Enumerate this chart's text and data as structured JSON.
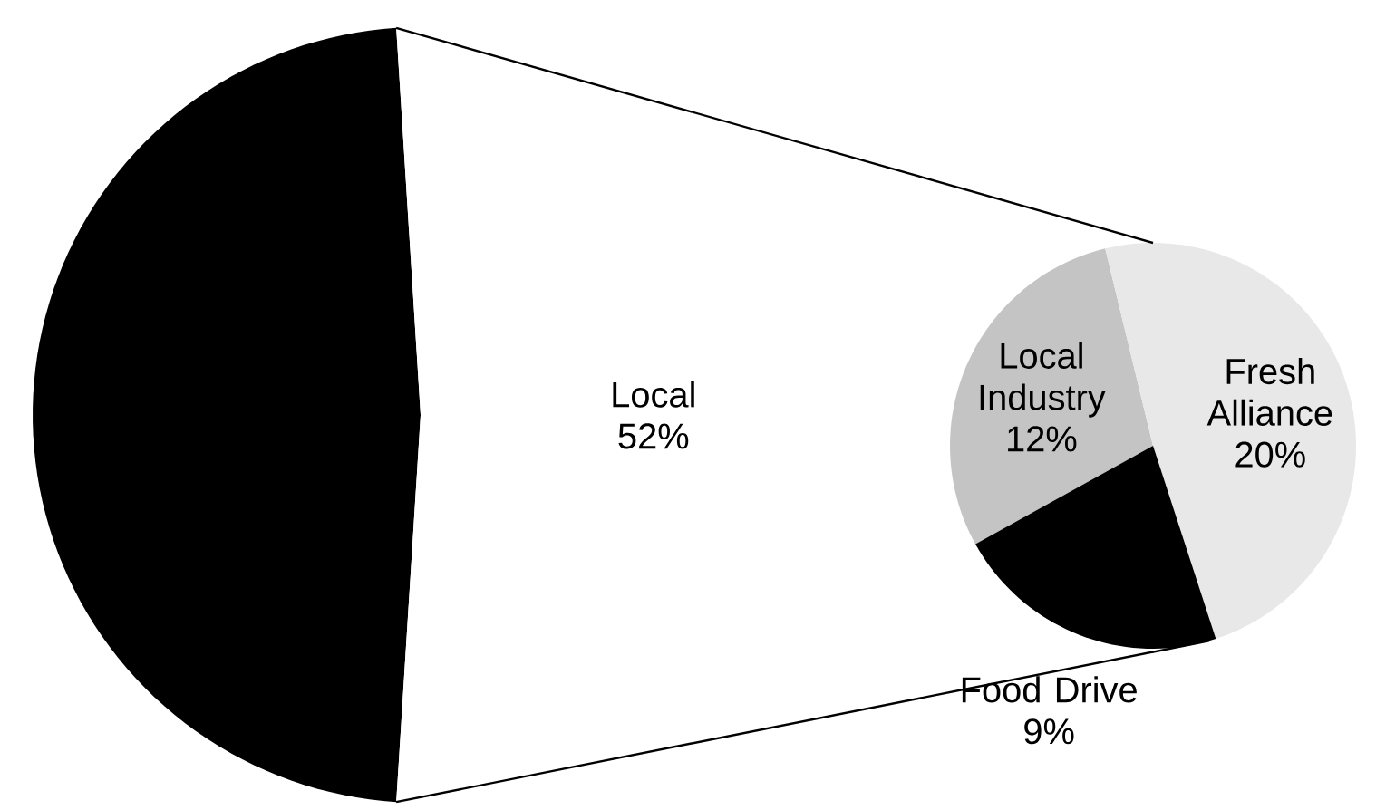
{
  "chart_data": [
    {
      "type": "pie",
      "categories": [
        null,
        "Local"
      ],
      "values": [
        48,
        52
      ],
      "colors": [
        "#000000",
        "#ffffff"
      ],
      "value_labels": [
        null,
        "52%"
      ]
    },
    {
      "type": "pie",
      "categories": [
        "Local Industry",
        "Fresh Alliance",
        "Food Drive"
      ],
      "values": [
        12,
        20,
        9
      ],
      "colors": [
        "#c4c4c4",
        "#e8e8e8",
        "#000000"
      ],
      "value_labels": [
        "12%",
        "20%",
        "9%"
      ]
    }
  ]
}
